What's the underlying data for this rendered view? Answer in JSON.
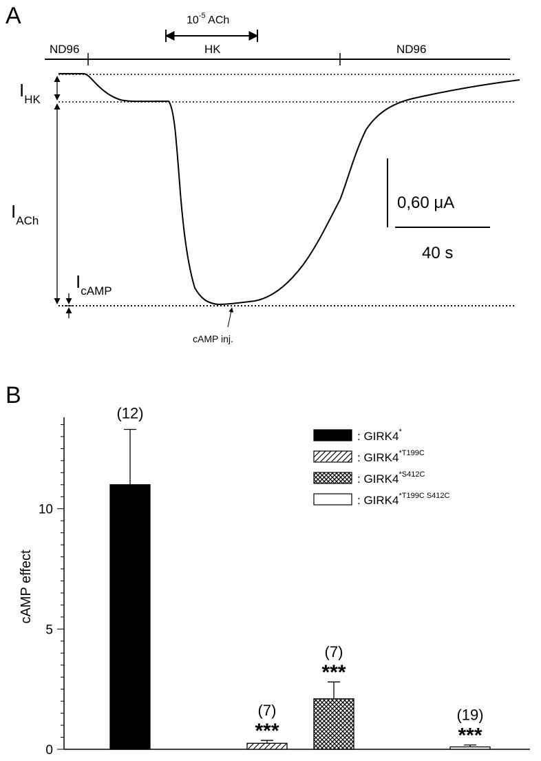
{
  "panel_a": {
    "label": "A",
    "drug_label_base": "10",
    "drug_label_exp": "-5",
    "drug_label_rest": " ACh",
    "solutions": [
      "ND96",
      "HK",
      "ND96"
    ],
    "current_labels": {
      "hk": {
        "base": "I",
        "sub": "HK"
      },
      "ach": {
        "base": "I",
        "sub": "ACh"
      },
      "camp": {
        "base": "I",
        "sub": "cAMP"
      }
    },
    "annotation": "cAMP inj.",
    "scale_current": "0,60  μA",
    "scale_time": "40 s"
  },
  "chart_data": {
    "type": "bar",
    "panel_label": "B",
    "title": "",
    "xlabel": "",
    "ylabel": "cAMP effect",
    "ylim": [
      0,
      13.8
    ],
    "y_ticks": [
      "0",
      "5",
      "10"
    ],
    "categories": [
      "GIRK4*",
      "GIRK4*T199C",
      "GIRK4*S412C",
      "GIRK4*T199C S412C"
    ],
    "values": [
      11.0,
      0.25,
      2.1,
      0.1
    ],
    "errors": [
      2.3,
      0.12,
      0.7,
      0.08
    ],
    "n_labels": [
      "(12)",
      "(7)",
      "(7)",
      "(19)"
    ],
    "significance": [
      "",
      "***",
      "***",
      "***"
    ],
    "legend": [
      {
        "prefix": ": GIRK4",
        "sup": "*",
        "pattern": "solid"
      },
      {
        "prefix": ": GIRK4",
        "sup": "*T199C",
        "pattern": "hatch"
      },
      {
        "prefix": ": GIRK4",
        "sup": "*S412C",
        "pattern": "crosshatch"
      },
      {
        "prefix": ": GIRK4",
        "sup": "*T199C S412C",
        "pattern": "open"
      }
    ],
    "legend_position": "top-right"
  }
}
